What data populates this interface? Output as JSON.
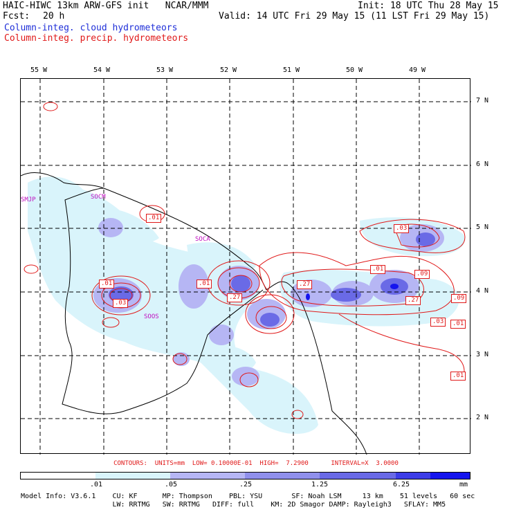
{
  "header": {
    "title": "HAIC-HIWC 13km ARW-GFS init   NCAR/MMM",
    "init": "Init: 18 UTC Thu 28 May 15",
    "fcst_label": "Fcst:",
    "fcst_value": "20 h",
    "valid": "Valid: 14 UTC Fri 29 May 15 (11 LST Fri 29 May 15)",
    "line_blue": "Column-integ. cloud hydrometeors",
    "line_red": "Column-integ. precip. hydrometeors"
  },
  "map": {
    "lon_labels": [
      "55 W",
      "54 W",
      "53 W",
      "52 W",
      "51 W",
      "50 W",
      "49 W"
    ],
    "lat_labels": [
      "7 N",
      "6 N",
      "5 N",
      "4 N",
      "3 N",
      "2 N"
    ],
    "places": [
      "SMJP",
      "SOCM",
      "SOCA",
      "SOOS"
    ],
    "contour_labels": [
      ".01",
      ".01",
      ".03",
      ".01",
      ".27",
      ".27",
      ".01",
      ".03",
      ".09",
      ".27",
      ".09",
      ".03",
      ".01",
      ".01"
    ]
  },
  "legend": {
    "contours_text": "CONTOURS:  UNITS=mm  LOW= 0.10000E-01  HIGH=  7.2900      INTERVAL=X  3.0000",
    "ticks": [
      ".01",
      ".05",
      ".25",
      "1.25",
      "6.25"
    ],
    "units": "mm",
    "colors": [
      "#ffffff",
      "#d9f4fb",
      "#b6b6f4",
      "#9090ec",
      "#6a6ae6",
      "#3d3de8",
      "#1515ee"
    ]
  },
  "footer": {
    "line1": "Model Info: V3.6.1    CU: KF      MP: Thompson    PBL: YSU       SF: Noah LSM     13 km    51 levels   60 sec",
    "line2": "                      LW: RRTMG   SW: RRTMG   DIFF: full    KM: 2D Smagor DAMP: Rayleigh3   SFLAY: MM5"
  }
}
